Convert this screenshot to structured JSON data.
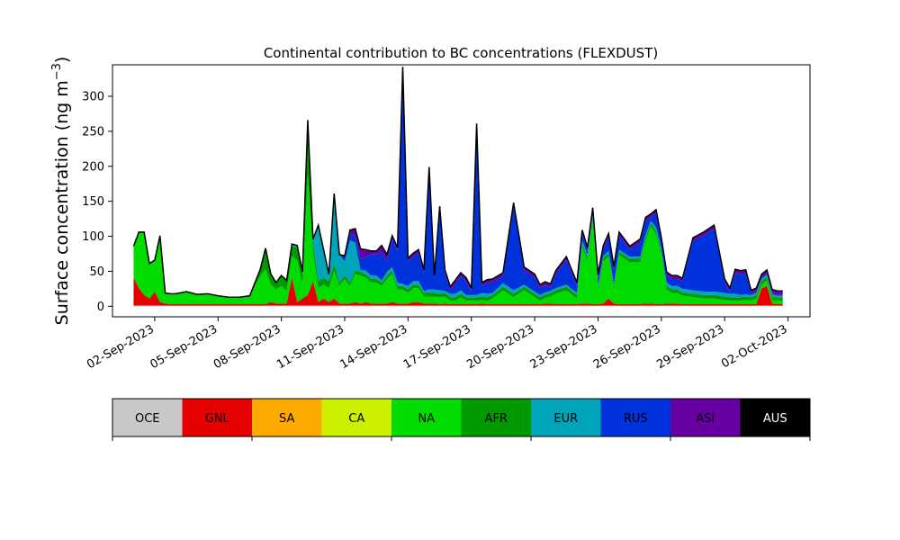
{
  "chart_data": {
    "type": "area",
    "stacked": true,
    "title": "Continental contribution to BC concentrations (FLEXDUST)",
    "ylabel": "Surface concentration (ng m",
    "ylabel_sup": "−3",
    "ylabel_close": ")",
    "xlabel": "",
    "ylim": [
      -15,
      345
    ],
    "yticks": [
      0,
      50,
      100,
      150,
      200,
      250,
      300
    ],
    "xlim": [
      "2023-08-31T00:00",
      "2023-10-03T01:00"
    ],
    "xticks": [
      "02-Sep-2023",
      "05-Sep-2023",
      "08-Sep-2023",
      "11-Sep-2023",
      "14-Sep-2023",
      "17-Sep-2023",
      "20-Sep-2023",
      "23-Sep-2023",
      "26-Sep-2023",
      "29-Sep-2023",
      "02-Oct-2023"
    ],
    "xtick_dates": [
      "2023-09-02",
      "2023-09-05",
      "2023-09-08",
      "2023-09-11",
      "2023-09-14",
      "2023-09-17",
      "2023-09-20",
      "2023-09-23",
      "2023-09-26",
      "2023-09-29",
      "2023-10-02"
    ],
    "grid": false,
    "total_line_color": "#000000",
    "x": [
      "2023-09-01T00:00",
      "2023-09-01T06:00",
      "2023-09-01T12:00",
      "2023-09-01T18:00",
      "2023-09-02T00:00",
      "2023-09-02T06:00",
      "2023-09-02T12:00",
      "2023-09-02T18:00",
      "2023-09-03T00:00",
      "2023-09-03T12:00",
      "2023-09-04T00:00",
      "2023-09-04T12:00",
      "2023-09-05T00:00",
      "2023-09-05T12:00",
      "2023-09-06T00:00",
      "2023-09-06T12:00",
      "2023-09-07T00:00",
      "2023-09-07T06:00",
      "2023-09-07T12:00",
      "2023-09-07T18:00",
      "2023-09-08T00:00",
      "2023-09-08T06:00",
      "2023-09-08T12:00",
      "2023-09-08T18:00",
      "2023-09-09T00:00",
      "2023-09-09T06:00",
      "2023-09-09T12:00",
      "2023-09-09T18:00",
      "2023-09-10T00:00",
      "2023-09-10T06:00",
      "2023-09-10T12:00",
      "2023-09-10T18:00",
      "2023-09-11T00:00",
      "2023-09-11T06:00",
      "2023-09-11T12:00",
      "2023-09-11T18:00",
      "2023-09-12T00:00",
      "2023-09-12T06:00",
      "2023-09-12T12:00",
      "2023-09-12T18:00",
      "2023-09-13T00:00",
      "2023-09-13T06:00",
      "2023-09-13T12:00",
      "2023-09-13T18:00",
      "2023-09-14T00:00",
      "2023-09-14T06:00",
      "2023-09-14T12:00",
      "2023-09-14T18:00",
      "2023-09-15T00:00",
      "2023-09-15T06:00",
      "2023-09-15T12:00",
      "2023-09-15T18:00",
      "2023-09-16T00:00",
      "2023-09-16T06:00",
      "2023-09-16T12:00",
      "2023-09-16T18:00",
      "2023-09-17T00:00",
      "2023-09-17T06:00",
      "2023-09-17T12:00",
      "2023-09-17T18:00",
      "2023-09-18T00:00",
      "2023-09-18T12:00",
      "2023-09-19T00:00",
      "2023-09-19T12:00",
      "2023-09-20T00:00",
      "2023-09-20T06:00",
      "2023-09-20T12:00",
      "2023-09-20T18:00",
      "2023-09-21T00:00",
      "2023-09-21T12:00",
      "2023-09-22T00:00",
      "2023-09-22T06:00",
      "2023-09-22T12:00",
      "2023-09-22T18:00",
      "2023-09-23T00:00",
      "2023-09-23T06:00",
      "2023-09-23T12:00",
      "2023-09-23T18:00",
      "2023-09-24T00:00",
      "2023-09-24T12:00",
      "2023-09-25T00:00",
      "2023-09-25T06:00",
      "2023-09-25T12:00",
      "2023-09-25T18:00",
      "2023-09-26T00:00",
      "2023-09-26T06:00",
      "2023-09-26T12:00",
      "2023-09-26T18:00",
      "2023-09-27T00:00",
      "2023-09-27T12:00",
      "2023-09-28T00:00",
      "2023-09-28T12:00",
      "2023-09-29T00:00",
      "2023-09-29T06:00",
      "2023-09-29T12:00",
      "2023-09-29T18:00",
      "2023-09-30T00:00",
      "2023-09-30T06:00",
      "2023-09-30T12:00",
      "2023-09-30T18:00",
      "2023-10-01T00:00",
      "2023-10-01T06:00",
      "2023-10-01T12:00",
      "2023-10-01T18:00"
    ],
    "series": [
      {
        "name": "OCE",
        "color": "#c8c8c8",
        "values": [
          1,
          1,
          1,
          1,
          1,
          1,
          1,
          1,
          1,
          1,
          1,
          1,
          1,
          1,
          1,
          1,
          1,
          1,
          1,
          1,
          1,
          1,
          1,
          1,
          1,
          1,
          1,
          1,
          1,
          1,
          1,
          1,
          1,
          1,
          1,
          1,
          1,
          1,
          1,
          1,
          1,
          1,
          1,
          1,
          1,
          1,
          1,
          1,
          1,
          1,
          1,
          1,
          1,
          1,
          1,
          1,
          1,
          1,
          1,
          1,
          1,
          1,
          1,
          1,
          1,
          1,
          1,
          1,
          1,
          1,
          1,
          1,
          1,
          1,
          1,
          1,
          1,
          1,
          1,
          1,
          1,
          1,
          1,
          1,
          1,
          1,
          1,
          1,
          1,
          1,
          1,
          1,
          1,
          1,
          1,
          1,
          1,
          1,
          1,
          1,
          1,
          1,
          1,
          1
        ]
      },
      {
        "name": "GNL",
        "color": "#e60000",
        "values": [
          40,
          25,
          15,
          10,
          20,
          5,
          3,
          2,
          2,
          2,
          2,
          2,
          2,
          2,
          2,
          2,
          2,
          2,
          5,
          3,
          3,
          3,
          40,
          5,
          10,
          15,
          35,
          5,
          10,
          5,
          10,
          3,
          3,
          3,
          5,
          3,
          5,
          3,
          3,
          3,
          3,
          5,
          3,
          3,
          3,
          5,
          5,
          3,
          3,
          3,
          2,
          3,
          2,
          2,
          2,
          2,
          2,
          2,
          3,
          2,
          2,
          2,
          2,
          2,
          2,
          2,
          3,
          3,
          2,
          2,
          2,
          3,
          3,
          2,
          2,
          3,
          10,
          3,
          2,
          2,
          2,
          3,
          3,
          2,
          2,
          3,
          3,
          3,
          2,
          2,
          2,
          2,
          2,
          2,
          2,
          2,
          2,
          2,
          2,
          25,
          28,
          3,
          2,
          2
        ]
      },
      {
        "name": "SA",
        "color": "#ffaa00",
        "values": [
          0,
          0,
          0,
          0,
          0,
          0,
          0,
          0,
          0,
          0,
          0,
          0,
          0,
          0,
          0,
          0,
          0,
          0,
          0,
          0,
          0,
          0,
          0,
          0,
          0,
          0,
          0,
          0,
          0,
          0,
          0,
          0,
          0,
          0,
          0,
          0,
          0,
          0,
          0,
          0,
          0,
          0,
          0,
          0,
          0,
          0,
          0,
          0,
          0,
          0,
          0,
          0,
          0,
          0,
          0,
          0,
          0,
          0,
          0,
          0,
          0,
          0,
          0,
          0,
          0,
          0,
          0,
          0,
          0,
          0,
          0,
          0,
          0,
          0,
          0,
          0,
          0,
          0,
          0,
          0,
          0,
          0,
          0,
          0,
          0,
          0,
          0,
          0,
          0,
          0,
          0,
          0,
          0,
          0,
          0,
          0,
          0,
          0,
          0,
          0,
          0,
          0,
          0,
          0
        ]
      },
      {
        "name": "CA",
        "color": "#ccf000",
        "values": [
          0,
          0,
          0,
          0,
          0,
          0,
          0,
          0,
          0,
          0,
          0,
          0,
          0,
          0,
          0,
          0,
          0,
          0,
          0,
          0,
          0,
          0,
          0,
          0,
          0,
          0,
          0,
          0,
          0,
          0,
          0,
          0,
          0,
          0,
          0,
          0,
          0,
          0,
          0,
          0,
          0,
          0,
          0,
          0,
          0,
          0,
          0,
          0,
          0,
          0,
          0,
          0,
          0,
          0,
          0,
          0,
          0,
          0,
          0,
          0,
          0,
          0,
          0,
          0,
          0,
          0,
          0,
          0,
          0,
          0,
          0,
          0,
          0,
          0,
          0,
          0,
          0,
          0,
          0,
          0,
          0,
          0,
          0,
          0,
          0,
          0,
          0,
          0,
          0,
          0,
          0,
          0,
          0,
          0,
          0,
          0,
          0,
          0,
          0,
          0,
          0,
          0,
          0,
          0
        ]
      },
      {
        "name": "NA",
        "color": "#00dc00",
        "values": [
          45,
          80,
          90,
          50,
          45,
          95,
          15,
          15,
          15,
          18,
          14,
          15,
          12,
          10,
          10,
          12,
          40,
          50,
          25,
          20,
          25,
          18,
          30,
          60,
          20,
          170,
          40,
          20,
          20,
          20,
          40,
          25,
          35,
          25,
          40,
          40,
          35,
          30,
          30,
          25,
          35,
          40,
          20,
          20,
          15,
          20,
          20,
          10,
          10,
          10,
          10,
          10,
          5,
          5,
          10,
          5,
          5,
          5,
          5,
          5,
          8,
          20,
          10,
          20,
          10,
          5,
          8,
          10,
          15,
          20,
          8,
          80,
          60,
          120,
          20,
          60,
          60,
          20,
          70,
          60,
          60,
          90,
          110,
          100,
          70,
          20,
          15,
          15,
          12,
          10,
          8,
          8,
          6,
          5,
          5,
          5,
          6,
          5,
          8,
          5,
          8,
          5,
          5,
          5
        ]
      },
      {
        "name": "AFR",
        "color": "#009a00",
        "values": [
          0,
          0,
          0,
          0,
          0,
          0,
          0,
          0,
          0,
          0,
          0,
          0,
          0,
          0,
          0,
          0,
          10,
          30,
          15,
          10,
          15,
          15,
          15,
          18,
          15,
          70,
          15,
          10,
          10,
          10,
          10,
          5,
          5,
          5,
          5,
          5,
          5,
          5,
          5,
          5,
          5,
          5,
          5,
          5,
          5,
          5,
          5,
          5,
          5,
          5,
          5,
          5,
          5,
          5,
          5,
          5,
          5,
          5,
          5,
          5,
          5,
          5,
          5,
          5,
          5,
          5,
          5,
          5,
          5,
          5,
          5,
          5,
          5,
          5,
          5,
          5,
          5,
          5,
          5,
          5,
          5,
          5,
          5,
          5,
          5,
          5,
          5,
          5,
          5,
          5,
          5,
          5,
          5,
          5,
          5,
          5,
          5,
          5,
          5,
          5,
          5,
          5,
          5,
          5
        ]
      },
      {
        "name": "EUR",
        "color": "#00a5b9",
        "values": [
          0,
          0,
          0,
          0,
          0,
          0,
          0,
          0,
          0,
          0,
          0,
          0,
          0,
          0,
          0,
          0,
          0,
          0,
          0,
          0,
          0,
          0,
          3,
          3,
          3,
          10,
          5,
          80,
          40,
          10,
          100,
          40,
          20,
          60,
          40,
          3,
          5,
          5,
          5,
          3,
          5,
          5,
          5,
          3,
          5,
          5,
          5,
          3,
          5,
          5,
          5,
          3,
          5,
          5,
          5,
          3,
          3,
          3,
          5,
          5,
          3,
          5,
          5,
          3,
          3,
          3,
          3,
          3,
          3,
          3,
          3,
          5,
          5,
          3,
          3,
          3,
          3,
          3,
          3,
          3,
          3,
          3,
          3,
          5,
          5,
          5,
          5,
          5,
          5,
          5,
          5,
          5,
          5,
          5,
          5,
          3,
          3,
          3,
          3,
          3,
          3,
          3,
          2,
          2
        ]
      },
      {
        "name": "RUS",
        "color": "#0032dc",
        "values": [
          0,
          0,
          0,
          0,
          0,
          0,
          0,
          0,
          0,
          0,
          0,
          0,
          0,
          0,
          0,
          0,
          0,
          0,
          0,
          0,
          0,
          0,
          0,
          0,
          0,
          0,
          0,
          0,
          0,
          0,
          0,
          0,
          5,
          10,
          10,
          15,
          20,
          30,
          30,
          40,
          15,
          40,
          45,
          300,
          35,
          35,
          40,
          25,
          170,
          15,
          115,
          25,
          5,
          15,
          20,
          20,
          5,
          240,
          10,
          15,
          15,
          10,
          120,
          20,
          20,
          10,
          10,
          5,
          20,
          35,
          10,
          10,
          5,
          5,
          10,
          10,
          20,
          20,
          20,
          10,
          20,
          20,
          5,
          20,
          10,
          10,
          10,
          10,
          10,
          70,
          80,
          90,
          15,
          3,
          30,
          30,
          30,
          2,
          2,
          2,
          2,
          2,
          2,
          2
        ]
      },
      {
        "name": "ASI",
        "color": "#6600a0",
        "values": [
          0,
          0,
          0,
          0,
          0,
          0,
          0,
          0,
          0,
          0,
          0,
          0,
          0,
          0,
          0,
          0,
          0,
          0,
          0,
          0,
          0,
          0,
          0,
          0,
          0,
          0,
          0,
          0,
          0,
          0,
          0,
          0,
          3,
          5,
          10,
          15,
          10,
          5,
          5,
          10,
          10,
          5,
          5,
          10,
          5,
          5,
          5,
          5,
          5,
          5,
          5,
          5,
          5,
          5,
          5,
          5,
          5,
          5,
          5,
          5,
          5,
          5,
          5,
          5,
          5,
          5,
          5,
          5,
          5,
          5,
          5,
          5,
          5,
          5,
          5,
          5,
          5,
          5,
          5,
          5,
          5,
          5,
          5,
          5,
          5,
          5,
          5,
          5,
          5,
          5,
          5,
          5,
          5,
          5,
          5,
          5,
          5,
          5,
          5,
          5,
          5,
          5,
          5,
          5
        ]
      },
      {
        "name": "AUS",
        "color": "#000000",
        "values": [
          0,
          0,
          0,
          0,
          0,
          0,
          0,
          0,
          0,
          0,
          0,
          0,
          0,
          0,
          0,
          0,
          0,
          0,
          0,
          0,
          0,
          0,
          0,
          0,
          0,
          0,
          0,
          0,
          0,
          0,
          0,
          0,
          0,
          0,
          0,
          0,
          0,
          0,
          0,
          0,
          0,
          0,
          0,
          0,
          0,
          0,
          0,
          0,
          0,
          0,
          0,
          0,
          0,
          0,
          0,
          0,
          0,
          0,
          0,
          0,
          0,
          0,
          0,
          0,
          0,
          0,
          0,
          0,
          0,
          0,
          0,
          0,
          0,
          0,
          0,
          0,
          0,
          0,
          0,
          0,
          0,
          0,
          0,
          0,
          0,
          0,
          0,
          0,
          0,
          0,
          0,
          0,
          0,
          0,
          0,
          0,
          0,
          0,
          0,
          0,
          0,
          0,
          0,
          0
        ]
      }
    ],
    "legend": {
      "placement": "bottom colorbar",
      "entries": [
        {
          "label": "OCE",
          "color": "#c8c8c8",
          "text_color": "#000000"
        },
        {
          "label": "GNL",
          "color": "#e60000",
          "text_color": "#000000"
        },
        {
          "label": "SA",
          "color": "#ffaa00",
          "text_color": "#000000"
        },
        {
          "label": "CA",
          "color": "#ccf000",
          "text_color": "#000000"
        },
        {
          "label": "NA",
          "color": "#00dc00",
          "text_color": "#000000"
        },
        {
          "label": "AFR",
          "color": "#009a00",
          "text_color": "#000000"
        },
        {
          "label": "EUR",
          "color": "#00a5b9",
          "text_color": "#000000"
        },
        {
          "label": "RUS",
          "color": "#0032dc",
          "text_color": "#000000"
        },
        {
          "label": "ASI",
          "color": "#6600a0",
          "text_color": "#000000"
        },
        {
          "label": "AUS",
          "color": "#000000",
          "text_color": "#ffffff"
        }
      ]
    }
  }
}
